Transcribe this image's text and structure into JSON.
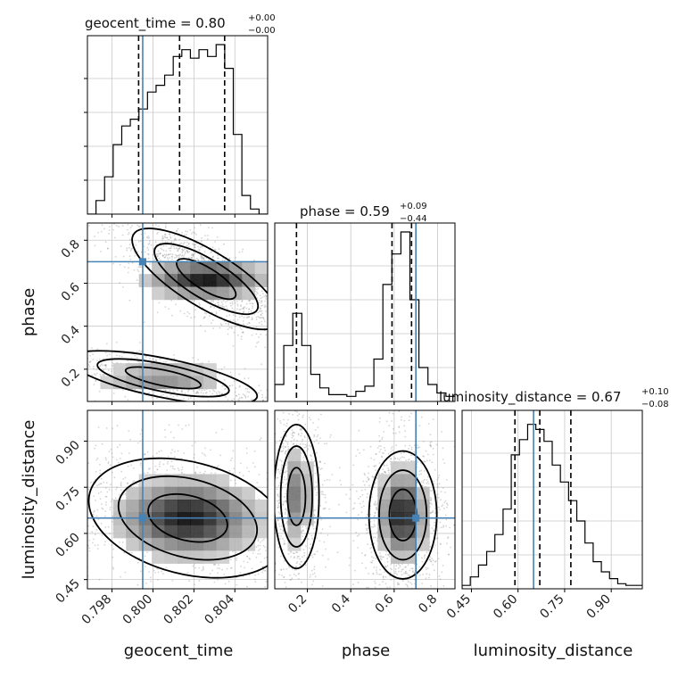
{
  "colors": {
    "truth": "#4682b4",
    "hist": "#000000",
    "grid": "#c8c8c8",
    "points": "#888888"
  },
  "chart_data": {
    "type": "corner",
    "parameters": [
      {
        "name": "geocent_time",
        "title": {
          "text": "geocent_time = 0.80",
          "sup": "+0.00",
          "sub": "−0.00"
        },
        "range": [
          0.7968,
          0.8056
        ],
        "ticks": [
          0.798,
          0.8,
          0.802,
          0.804
        ],
        "tick_labels": [
          "0.798",
          "0.800",
          "0.802",
          "0.804"
        ],
        "truth": 0.7995,
        "quantiles": [
          0.7993,
          0.8013,
          0.8035
        ],
        "hist": [
          0.0,
          0.08,
          0.22,
          0.41,
          0.52,
          0.56,
          0.62,
          0.72,
          0.76,
          0.82,
          0.93,
          0.97,
          0.92,
          0.97,
          0.93,
          1.0,
          0.86,
          0.47,
          0.11,
          0.03,
          0.0
        ]
      },
      {
        "name": "phase",
        "title": {
          "text": "phase = 0.59",
          "sup": "+0.09",
          "sub": "−0.44"
        },
        "range": [
          0.05,
          0.88
        ],
        "ticks": [
          0.2,
          0.4,
          0.6,
          0.8
        ],
        "tick_labels": [
          "0.2",
          "0.4",
          "0.6",
          "0.8"
        ],
        "truth": 0.7,
        "quantiles": [
          0.15,
          0.59,
          0.68
        ],
        "hist": [
          0.1,
          0.33,
          0.52,
          0.33,
          0.16,
          0.08,
          0.04,
          0.04,
          0.03,
          0.06,
          0.09,
          0.25,
          0.69,
          0.87,
          1.0,
          0.6,
          0.2,
          0.1,
          0.05,
          0.03
        ]
      },
      {
        "name": "luminosity_distance",
        "title": {
          "text": "luminosity_distance = 0.67",
          "sup": "+0.10",
          "sub": "−0.08"
        },
        "range": [
          0.42,
          1.0
        ],
        "ticks": [
          0.45,
          0.6,
          0.75,
          0.9
        ],
        "tick_labels": [
          "0.45",
          "0.60",
          "0.75",
          "0.90"
        ],
        "truth": 0.65,
        "quantiles": [
          0.59,
          0.67,
          0.77
        ],
        "hist": [
          0.02,
          0.07,
          0.14,
          0.22,
          0.32,
          0.47,
          0.79,
          0.88,
          0.97,
          0.94,
          0.87,
          0.73,
          0.63,
          0.52,
          0.4,
          0.27,
          0.16,
          0.1,
          0.06,
          0.03,
          0.02,
          0.02
        ]
      }
    ],
    "truth_values": {
      "geocent_time": 0.7995,
      "phase": 0.7,
      "luminosity_distance": 0.65
    },
    "density_blobs": [
      {
        "x": "geocent_time",
        "y": "phase",
        "cx": 0.8026,
        "cy": 0.62,
        "sx": 0.0016,
        "sy": 0.05,
        "rot": -0.55,
        "w": 1.0
      },
      {
        "x": "geocent_time",
        "y": "phase",
        "cx": 0.8005,
        "cy": 0.16,
        "sx": 0.0018,
        "sy": 0.035,
        "rot": -0.2,
        "w": 0.5
      },
      {
        "x": "geocent_time",
        "y": "luminosity_distance",
        "cx": 0.8017,
        "cy": 0.65,
        "sx": 0.0019,
        "sy": 0.07,
        "rot": -0.25,
        "w": 1.0
      },
      {
        "x": "phase",
        "y": "luminosity_distance",
        "cx": 0.15,
        "cy": 0.72,
        "sx": 0.04,
        "sy": 0.09,
        "rot": 0.0,
        "w": 0.55
      },
      {
        "x": "phase",
        "y": "luminosity_distance",
        "cx": 0.64,
        "cy": 0.66,
        "sx": 0.06,
        "sy": 0.08,
        "rot": 0.0,
        "w": 1.0
      }
    ],
    "grid": true
  }
}
